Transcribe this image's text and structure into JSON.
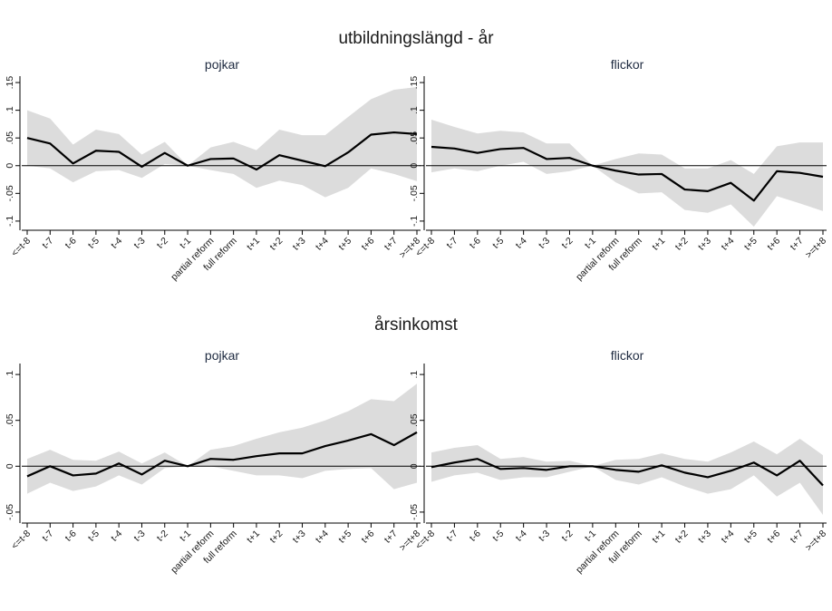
{
  "figure_titles": [
    "utbildningslängd - år",
    "årsinkomst"
  ],
  "chart_data": [
    {
      "type": "line",
      "title": "pojkar",
      "categories": [
        "<=t-8",
        "t-7",
        "t-6",
        "t-5",
        "t-4",
        "t-3",
        "t-2",
        "t-1",
        "partial reform",
        "full reform",
        "t+1",
        "t+2",
        "t+3",
        "t+4",
        "t+5",
        "t+6",
        "t+7",
        ">=t+8"
      ],
      "values": [
        0.05,
        0.04,
        0.004,
        0.027,
        0.025,
        -0.002,
        0.023,
        0.0,
        0.012,
        0.013,
        -0.007,
        0.019,
        0.009,
        -0.001,
        0.024,
        0.056,
        0.06,
        0.057
      ],
      "lower": [
        0.0,
        -0.005,
        -0.03,
        -0.01,
        -0.008,
        -0.022,
        0.003,
        0.0,
        -0.008,
        -0.015,
        -0.04,
        -0.027,
        -0.035,
        -0.057,
        -0.04,
        -0.005,
        -0.015,
        -0.028
      ],
      "upper": [
        0.1,
        0.085,
        0.038,
        0.065,
        0.057,
        0.02,
        0.043,
        0.0,
        0.033,
        0.043,
        0.028,
        0.065,
        0.055,
        0.055,
        0.088,
        0.12,
        0.137,
        0.142
      ],
      "color": "#000000",
      "band_color": "#dcdcdc",
      "refline": 0,
      "ylim": [
        -0.11,
        0.155
      ],
      "yticks": [
        {
          "value": -0.1,
          "label": "-.1"
        },
        {
          "value": -0.05,
          "label": "-.05"
        },
        0,
        {
          "value": 0.05,
          "label": ".05"
        },
        {
          "value": 0.1,
          "label": ".1"
        },
        {
          "value": 0.15,
          "label": ".15"
        }
      ]
    },
    {
      "type": "line",
      "title": "flickor",
      "categories": [
        "<=t-8",
        "t-7",
        "t-6",
        "t-5",
        "t-4",
        "t-3",
        "t-2",
        "t-1",
        "partial reform",
        "full reform",
        "t+1",
        "t+2",
        "t+3",
        "t+4",
        "t+5",
        "t+6",
        "t+7",
        ">=t+8"
      ],
      "values": [
        0.034,
        0.031,
        0.023,
        0.03,
        0.032,
        0.012,
        0.014,
        0.0,
        -0.009,
        -0.016,
        -0.015,
        -0.043,
        -0.046,
        -0.031,
        -0.063,
        -0.01,
        -0.013,
        -0.02
      ],
      "lower": [
        -0.012,
        -0.005,
        -0.01,
        0.0,
        0.007,
        -0.015,
        -0.01,
        0.0,
        -0.03,
        -0.05,
        -0.048,
        -0.08,
        -0.085,
        -0.07,
        -0.11,
        -0.055,
        -0.068,
        -0.082
      ],
      "upper": [
        0.083,
        0.07,
        0.058,
        0.063,
        0.06,
        0.04,
        0.04,
        0.0,
        0.012,
        0.022,
        0.02,
        -0.005,
        -0.005,
        0.01,
        -0.015,
        0.035,
        0.042,
        0.042
      ],
      "color": "#000000",
      "band_color": "#dcdcdc",
      "refline": 0,
      "ylim": [
        -0.11,
        0.155
      ],
      "yticks": [
        {
          "value": -0.1,
          "label": "-.1"
        },
        {
          "value": -0.05,
          "label": "-.05"
        },
        0,
        {
          "value": 0.05,
          "label": ".05"
        },
        {
          "value": 0.1,
          "label": ".1"
        },
        {
          "value": 0.15,
          "label": ".15"
        }
      ]
    },
    {
      "type": "line",
      "title": "pojkar",
      "categories": [
        "<=t-8",
        "t-7",
        "t-6",
        "t-5",
        "t-4",
        "t-3",
        "t-2",
        "t-1",
        "partial reform",
        "full reform",
        "t+1",
        "t+2",
        "t+3",
        "t+4",
        "t+5",
        "t+6",
        "t+7",
        ">=t+8"
      ],
      "values": [
        -0.011,
        0.0,
        -0.01,
        -0.008,
        0.003,
        -0.009,
        0.006,
        0.0,
        0.008,
        0.007,
        0.011,
        0.014,
        0.014,
        0.022,
        0.028,
        0.035,
        0.023,
        0.037
      ],
      "lower": [
        -0.03,
        -0.018,
        -0.027,
        -0.022,
        -0.01,
        -0.02,
        -0.002,
        0.0,
        0.0,
        -0.005,
        -0.01,
        -0.01,
        -0.013,
        -0.005,
        -0.003,
        -0.002,
        -0.025,
        -0.018
      ],
      "upper": [
        0.008,
        0.018,
        0.007,
        0.006,
        0.016,
        0.003,
        0.015,
        0.0,
        0.018,
        0.022,
        0.03,
        0.037,
        0.042,
        0.05,
        0.06,
        0.073,
        0.071,
        0.09
      ],
      "color": "#000000",
      "band_color": "#dcdcdc",
      "refline": 0,
      "ylim": [
        -0.058,
        0.108
      ],
      "yticks": [
        {
          "value": -0.05,
          "label": "-.05"
        },
        0,
        {
          "value": 0.05,
          "label": ".05"
        },
        {
          "value": 0.1,
          "label": ".1"
        }
      ]
    },
    {
      "type": "line",
      "title": "flickor",
      "categories": [
        "<=t-8",
        "t-7",
        "t-6",
        "t-5",
        "t-4",
        "t-3",
        "t-2",
        "t-1",
        "partial reform",
        "full reform",
        "t+1",
        "t+2",
        "t+3",
        "t+4",
        "t+5",
        "t+6",
        "t+7",
        ">=t+8"
      ],
      "values": [
        -0.001,
        0.004,
        0.008,
        -0.003,
        -0.002,
        -0.004,
        0.0,
        0.0,
        -0.004,
        -0.006,
        0.001,
        -0.007,
        -0.012,
        -0.005,
        0.004,
        -0.01,
        0.006,
        -0.021
      ],
      "lower": [
        -0.017,
        -0.01,
        -0.007,
        -0.015,
        -0.012,
        -0.012,
        -0.006,
        0.0,
        -0.015,
        -0.02,
        -0.012,
        -0.022,
        -0.03,
        -0.025,
        -0.01,
        -0.033,
        -0.018,
        -0.053
      ],
      "upper": [
        0.015,
        0.02,
        0.023,
        0.008,
        0.01,
        0.005,
        0.006,
        0.0,
        0.007,
        0.008,
        0.014,
        0.008,
        0.005,
        0.015,
        0.027,
        0.013,
        0.03,
        0.012
      ],
      "color": "#000000",
      "band_color": "#dcdcdc",
      "refline": 0,
      "ylim": [
        -0.058,
        0.108
      ],
      "yticks": [
        {
          "value": -0.05,
          "label": "-.05"
        },
        0,
        {
          "value": 0.05,
          "label": ".05"
        },
        {
          "value": 0.1,
          "label": ".1"
        }
      ]
    }
  ]
}
